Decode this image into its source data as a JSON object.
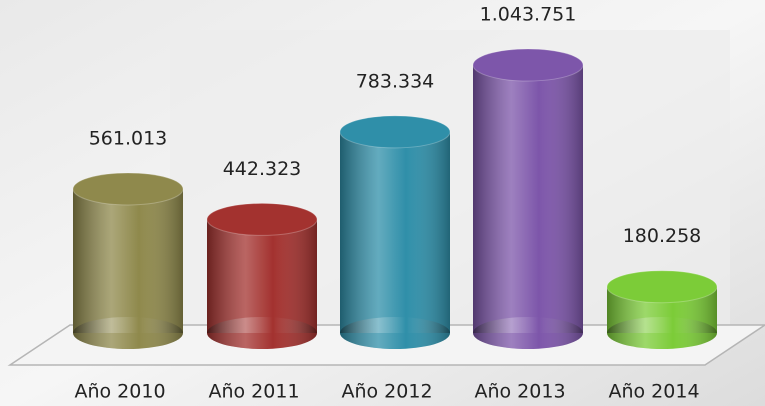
{
  "chart_data": {
    "type": "bar",
    "categories": [
      "Año 2010",
      "Año 2011",
      "Año 2012",
      "Año 2013",
      "Año 2014"
    ],
    "values": [
      561013,
      442323,
      783334,
      1043751,
      180258
    ],
    "value_labels": [
      "561.013",
      "442.323",
      "783.334",
      "1.043.751",
      "180.258"
    ],
    "colors": [
      "#8f894c",
      "#a3322f",
      "#2f8fa9",
      "#7d56aa",
      "#7ccc38"
    ]
  }
}
